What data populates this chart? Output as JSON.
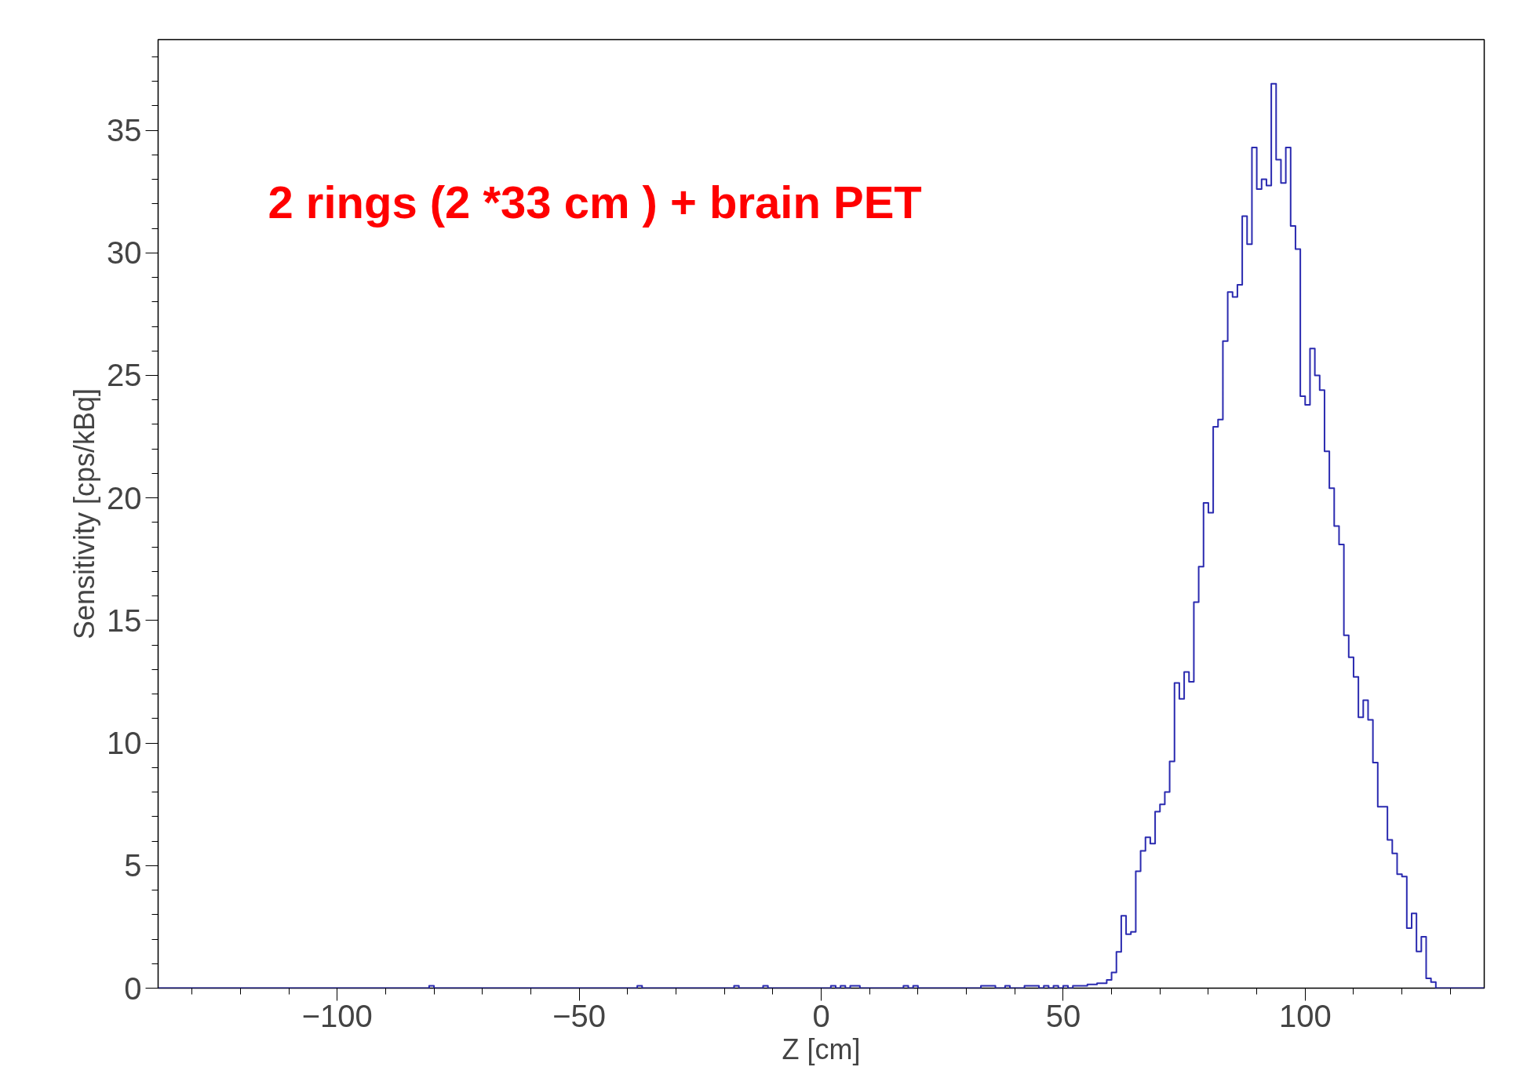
{
  "chart_data": {
    "type": "histogram",
    "xlabel": "Z [cm]",
    "ylabel": "Sensitivity [cps/kBq]",
    "annotations": [
      "2 rings (2 *33 cm ) + brain PET"
    ],
    "color": "#2b2bb0",
    "xlim": [
      -137,
      137
    ],
    "ylim": [
      0,
      38.7
    ],
    "xticks": [
      -100,
      -50,
      0,
      50,
      100
    ],
    "yticks": [
      0,
      5,
      10,
      15,
      20,
      25,
      30,
      35
    ],
    "grid": false,
    "bins": [
      -137,
      -136,
      -135,
      -134,
      -133,
      -132,
      -131,
      -130,
      -129,
      -128,
      -127,
      -126,
      -125,
      -124,
      -123,
      -122,
      -121,
      -120,
      -119,
      -118,
      -117,
      -116,
      -115,
      -114,
      -113,
      -112,
      -111,
      -110,
      -109,
      -108,
      -107,
      -106,
      -105,
      -104,
      -103,
      -102,
      -101,
      -100,
      -99,
      -98,
      -97,
      -96,
      -95,
      -94,
      -93,
      -92,
      -91,
      -90,
      -89,
      -88,
      -87,
      -86,
      -85,
      -84,
      -83,
      -82,
      -81,
      -80,
      -79,
      -78,
      -77,
      -76,
      -75,
      -74,
      -73,
      -72,
      -71,
      -70,
      -69,
      -68,
      -67,
      -66,
      -65,
      -64,
      -63,
      -62,
      -61,
      -60,
      -59,
      -58,
      -57,
      -56,
      -55,
      -54,
      -53,
      -52,
      -51,
      -50,
      -49,
      -48,
      -47,
      -46,
      -45,
      -44,
      -43,
      -42,
      -41,
      -40,
      -39,
      -38,
      -37,
      -36,
      -35,
      -34,
      -33,
      -32,
      -31,
      -30,
      -29,
      -28,
      -27,
      -26,
      -25,
      -24,
      -23,
      -22,
      -21,
      -20,
      -19,
      -18,
      -17,
      -16,
      -15,
      -14,
      -13,
      -12,
      -11,
      -10,
      -9,
      -8,
      -7,
      -6,
      -5,
      -4,
      -3,
      -2,
      -1,
      0,
      1,
      2,
      3,
      4,
      5,
      6,
      7,
      8,
      9,
      10,
      11,
      12,
      13,
      14,
      15,
      16,
      17,
      18,
      19,
      20,
      21,
      22,
      23,
      24,
      25,
      26,
      27,
      28,
      29,
      30,
      31,
      32,
      33,
      34,
      35,
      36,
      37,
      38,
      39,
      40,
      41,
      42,
      43,
      44,
      45,
      46,
      47,
      48,
      49,
      50,
      51,
      52,
      53,
      54,
      55,
      56,
      57,
      58,
      59,
      60,
      61,
      62,
      63,
      64,
      65,
      66,
      67,
      68,
      69,
      70,
      71,
      72,
      73,
      74,
      75,
      76,
      77,
      78,
      79,
      80,
      81,
      82,
      83,
      84,
      85,
      86,
      87,
      88,
      89,
      90,
      91,
      92,
      93,
      94,
      95,
      96,
      97,
      98,
      99,
      100,
      101,
      102,
      103,
      104,
      105,
      106,
      107,
      108,
      109,
      110,
      111,
      112,
      113,
      114,
      115,
      116,
      117,
      118,
      119,
      120,
      121,
      122,
      123,
      124,
      125,
      126,
      127,
      128,
      129,
      130,
      131,
      132,
      133,
      134,
      135,
      136,
      137
    ],
    "values": [
      0,
      0,
      0,
      0,
      0,
      0,
      0,
      0,
      0,
      0,
      0,
      0,
      0,
      0,
      0,
      0,
      0,
      0,
      0,
      0,
      0,
      0,
      0,
      0,
      0,
      0,
      0,
      0,
      0,
      0,
      0,
      0,
      0,
      0,
      0,
      0,
      0,
      0,
      0,
      0,
      0,
      0,
      0,
      0,
      0,
      0,
      0,
      0,
      0,
      0,
      0,
      0,
      0,
      0,
      0,
      0,
      0.1,
      0,
      0,
      0,
      0,
      0,
      0,
      0,
      0,
      0,
      0,
      0,
      0,
      0,
      0,
      0,
      0,
      0,
      0,
      0,
      0,
      0,
      0,
      0,
      0,
      0,
      0,
      0,
      0,
      0,
      0,
      0,
      0,
      0,
      0,
      0,
      0,
      0,
      0,
      0,
      0,
      0,
      0,
      0.1,
      0,
      0,
      0,
      0,
      0,
      0,
      0,
      0,
      0,
      0,
      0,
      0,
      0,
      0,
      0,
      0,
      0,
      0,
      0,
      0.1,
      0,
      0,
      0,
      0,
      0,
      0.1,
      0,
      0,
      0,
      0,
      0,
      0,
      0,
      0,
      0,
      0,
      0,
      0,
      0,
      0.1,
      0,
      0.1,
      0,
      0.1,
      0.1,
      0,
      0,
      0,
      0,
      0,
      0,
      0,
      0,
      0,
      0.1,
      0,
      0.1,
      0,
      0,
      0,
      0,
      0,
      0,
      0,
      0,
      0,
      0,
      0,
      0,
      0,
      0.1,
      0.1,
      0.1,
      0,
      0,
      0.1,
      0,
      0,
      0,
      0.1,
      0.1,
      0.1,
      0,
      0.1,
      0,
      0.1,
      0,
      0.1,
      0,
      0.1,
      0.1,
      0.1,
      0.15,
      0.15,
      0.2,
      0.2,
      0.34,
      0.64,
      1.48,
      2.95,
      2.2,
      2.3,
      4.77,
      5.6,
      6.15,
      5.9,
      7.2,
      7.5,
      8.0,
      9.25,
      12.45,
      11.8,
      12.9,
      12.5,
      15.75,
      17.2,
      19.8,
      19.4,
      22.9,
      23.2,
      26.4,
      28.4,
      28.2,
      28.7,
      31.5,
      30.35,
      34.3,
      32.6,
      33.0,
      32.75,
      36.9,
      33.8,
      32.85,
      34.3,
      31.1,
      30.15,
      24.15,
      23.8,
      26.1,
      25.0,
      24.4,
      21.9,
      20.4,
      18.85,
      18.1,
      14.4,
      13.5,
      12.7,
      11.05,
      11.75,
      10.95,
      9.2,
      7.4,
      7.4,
      6.05,
      5.5,
      4.65,
      4.55,
      2.45,
      3.05,
      1.5,
      2.1,
      0.4,
      0.25,
      0,
      0,
      0,
      0,
      0,
      0,
      0,
      0,
      0,
      0
    ]
  }
}
